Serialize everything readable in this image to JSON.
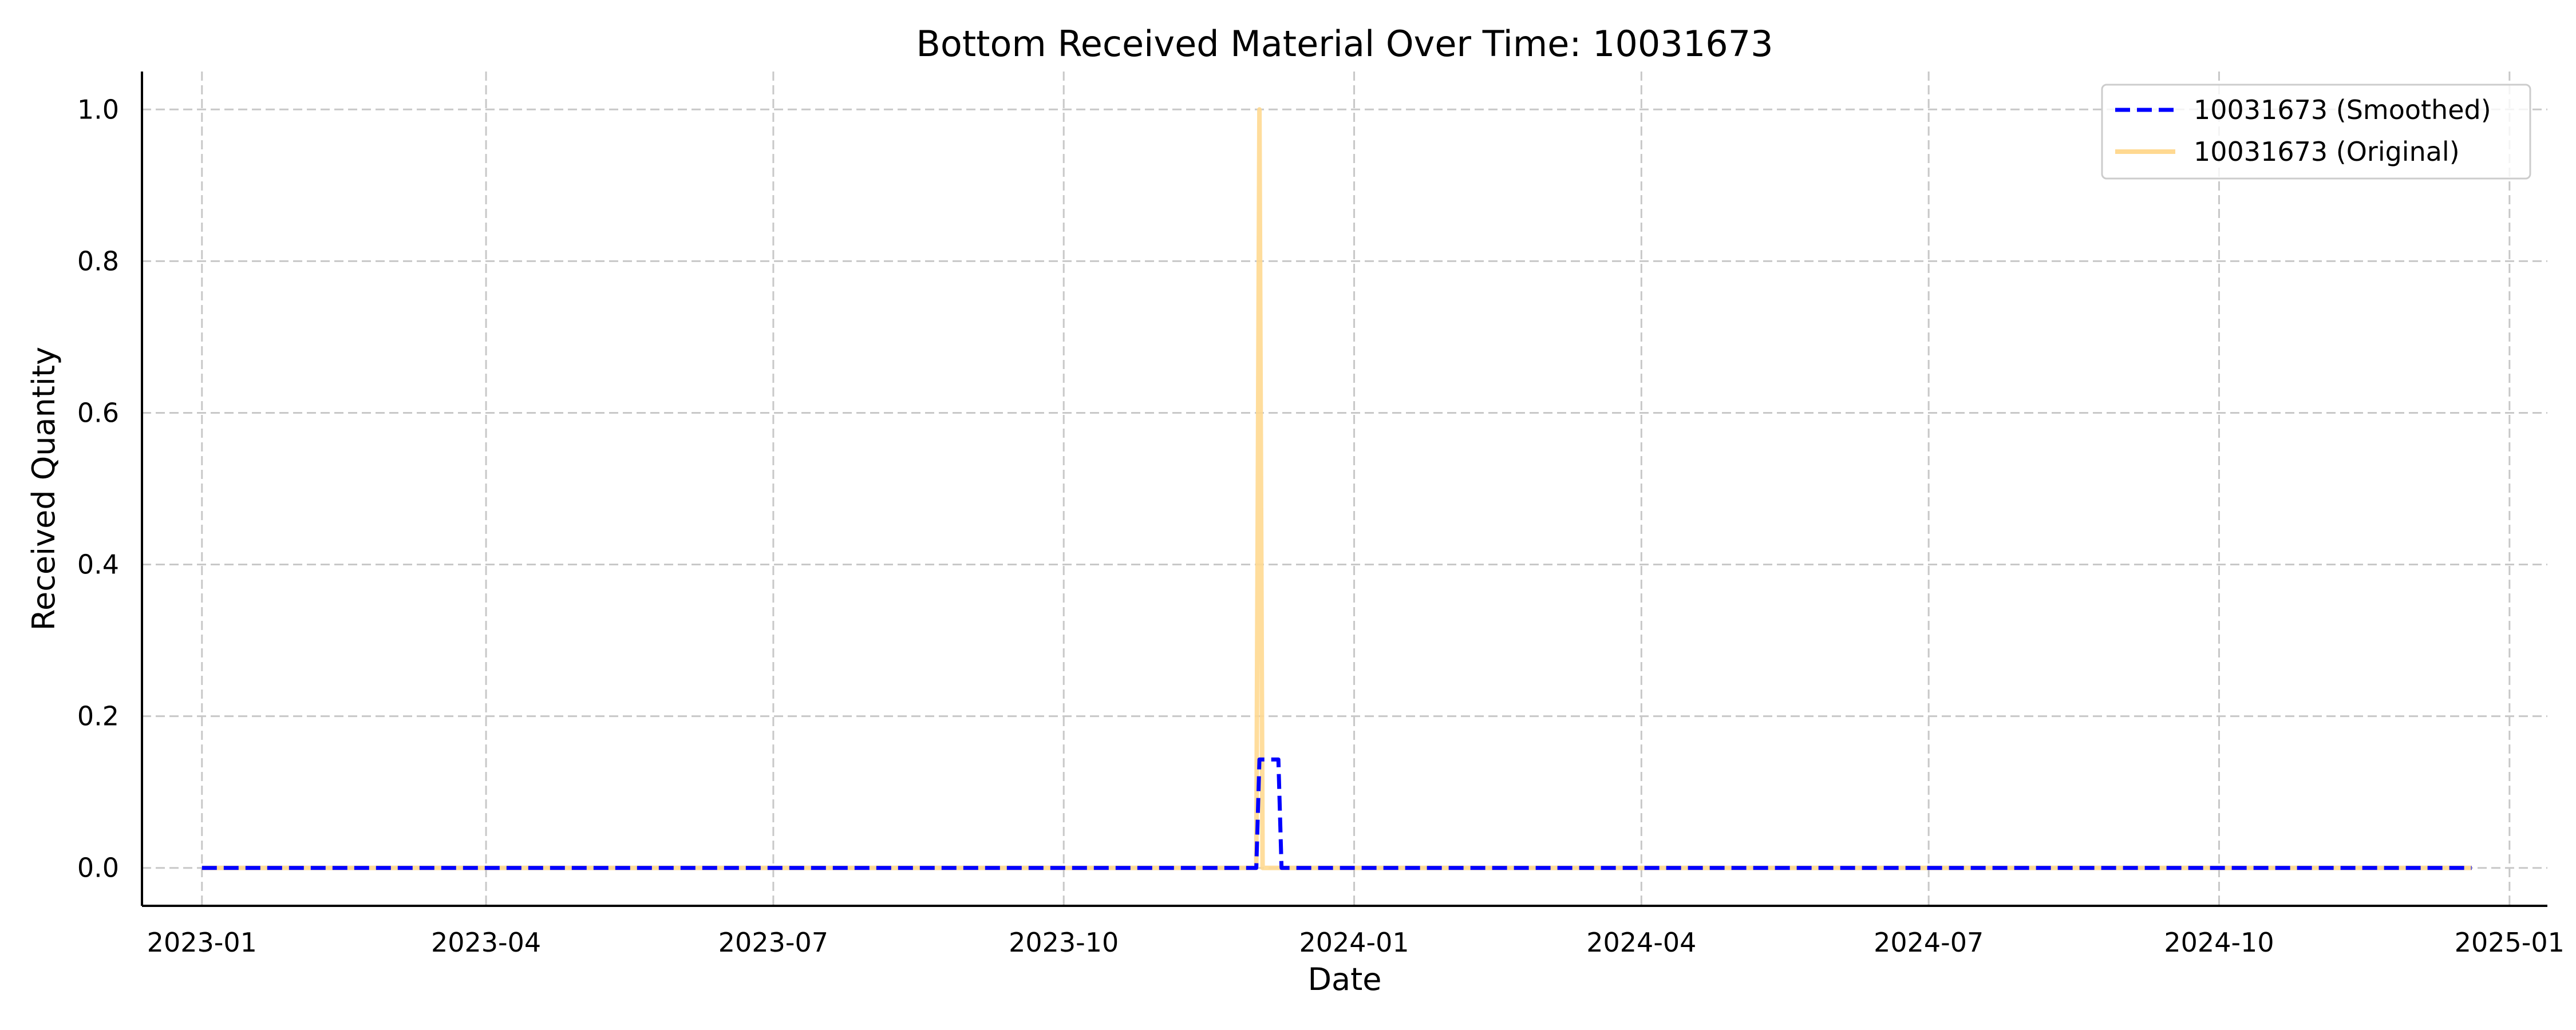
{
  "chart_data": {
    "type": "line",
    "title": "Bottom Received Material Over Time: 10031673",
    "xlabel": "Date",
    "ylabel": "Received Quantity",
    "x_axis_type": "date",
    "xlim": [
      "2022-12-13",
      "2025-01-13"
    ],
    "ylim": [
      -0.05,
      1.05
    ],
    "x_ticks": [
      "2023-01",
      "2023-04",
      "2023-07",
      "2023-10",
      "2024-01",
      "2024-04",
      "2024-07",
      "2024-10",
      "2025-01"
    ],
    "y_ticks": [
      "0.0",
      "0.2",
      "0.4",
      "0.6",
      "0.8",
      "1.0"
    ],
    "grid": true,
    "legend_position": "top-right",
    "series": [
      {
        "name": "10031673 (Smoothed)",
        "color": "#0000ff",
        "style": "dashed",
        "points": [
          [
            "2023-01-01",
            0.0
          ],
          [
            "2023-12-01",
            0.0
          ],
          [
            "2023-12-02",
            0.143
          ],
          [
            "2023-12-08",
            0.143
          ],
          [
            "2023-12-09",
            0.0
          ],
          [
            "2024-12-20",
            0.0
          ]
        ]
      },
      {
        "name": "10031673 (Original)",
        "color": "#ffd991",
        "style": "solid",
        "points": [
          [
            "2023-01-01",
            0.0
          ],
          [
            "2023-12-01",
            0.0
          ],
          [
            "2023-12-02",
            1.0
          ],
          [
            "2023-12-03",
            0.0
          ],
          [
            "2024-12-20",
            0.0
          ]
        ]
      }
    ]
  }
}
